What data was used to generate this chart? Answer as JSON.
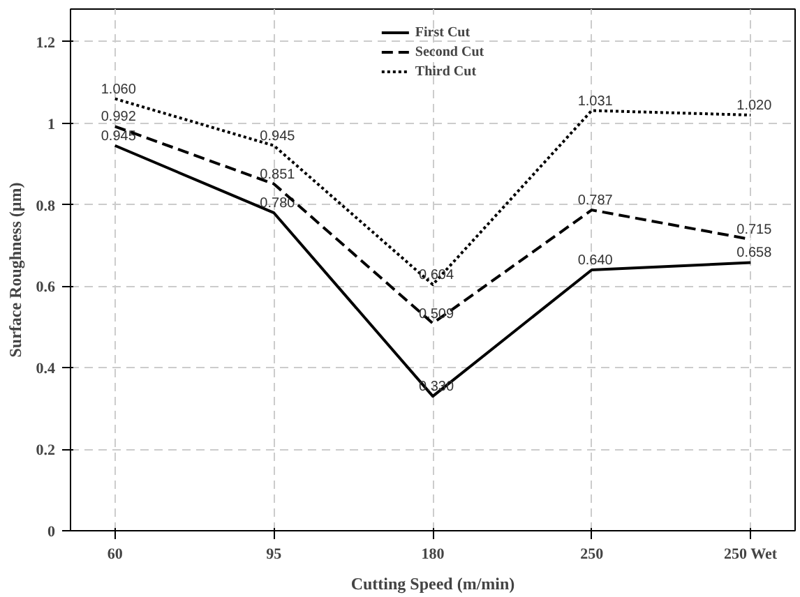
{
  "chart_data": {
    "type": "line",
    "xlabel": "Cutting Speed (m/min)",
    "ylabel": "Surface Roughness (µm)",
    "categories": [
      "60",
      "95",
      "180",
      "250",
      "250 Wet"
    ],
    "series": [
      {
        "name": "First Cut",
        "color": "#000000",
        "line_style": "solid",
        "values": [
          0.945,
          0.78,
          0.33,
          0.64,
          0.658
        ],
        "value_labels": [
          "0.945",
          "0.780",
          "0.330",
          "0.640",
          "0.658"
        ]
      },
      {
        "name": "Second Cut",
        "color": "#000000",
        "line_style": "dashed",
        "values": [
          0.992,
          0.851,
          0.509,
          0.787,
          0.715
        ],
        "value_labels": [
          "0.992",
          "0.851",
          "0.509",
          "0.787",
          "0.715"
        ]
      },
      {
        "name": "Third Cut",
        "color": "#000000",
        "line_style": "dotted",
        "values": [
          1.06,
          0.945,
          0.604,
          1.031,
          1.02
        ],
        "value_labels": [
          "1.060",
          "0.945",
          "0.604",
          "1.031",
          "1.020"
        ]
      }
    ],
    "ylim": [
      0,
      1.28
    ],
    "yticks": [
      0,
      0.2,
      0.4,
      0.6,
      0.8,
      1,
      1.2
    ],
    "grid": true,
    "legend": "top",
    "marker": "none"
  }
}
